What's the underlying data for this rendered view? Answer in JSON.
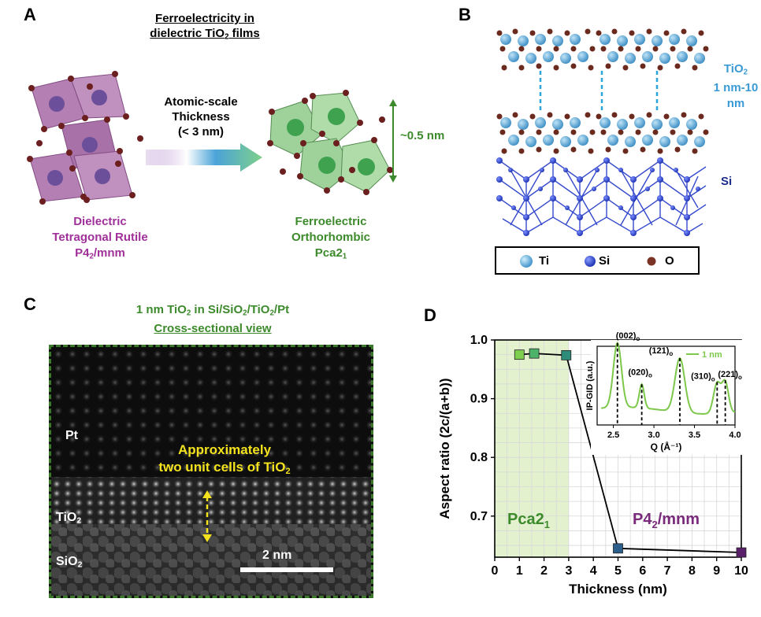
{
  "panels": {
    "a": "A",
    "b": "B",
    "c": "C",
    "d": "D"
  },
  "panel_a": {
    "title_line1": "Ferroelectricity in",
    "title_line2_pre": "dielectric TiO",
    "title_line2_sub": "2",
    "title_line2_post": " films",
    "arrow_line1": "Atomic-scale",
    "arrow_line2": "Thickness",
    "arrow_line3": "(< 3 nm)",
    "height_label": "~0.5 nm",
    "left_line1": "Dielectric",
    "left_line2": "Tetragonal Rutile",
    "left_line3_pre": "P4",
    "left_line3_sub": "2",
    "left_line3_post": "/mnm",
    "right_line1": "Ferroelectric",
    "right_line2": "Orthorhombic",
    "right_line3_pre": "Pca2",
    "right_line3_sub": "1"
  },
  "panel_b": {
    "tio2_pre": "TiO",
    "tio2_sub": "2",
    "thickness_line1": "1 nm-10",
    "thickness_line2": "nm",
    "si_label": "Si",
    "legend": [
      {
        "label": "Ti",
        "color": "#4aa3d8"
      },
      {
        "label": "Si",
        "color": "#1f3fbf"
      },
      {
        "label": "O",
        "color": "#7a3325"
      }
    ]
  },
  "panel_c": {
    "title_pre": "1 nm TiO",
    "title_sub1": "2",
    "title_mid": " in Si/SiO",
    "title_sub2": "2",
    "title_mid2": "/TiO",
    "title_sub3": "2",
    "title_post": "/Pt",
    "subtitle": "Cross-sectional view",
    "pt_label": "Pt",
    "tio2_pre": "TiO",
    "tio2_sub": "2",
    "sio2_pre": "SiO",
    "sio2_sub": "2",
    "annotation_line1": "Approximately",
    "annotation_line2_pre": "two unit cells of TiO",
    "annotation_line2_sub": "2",
    "scalebar": "2 nm"
  },
  "chart_data": [
    {
      "type": "line",
      "title": "",
      "xlabel": "Thickness (nm)",
      "ylabel": "Aspect ratio (2c/(a+b))",
      "xlim": [
        0,
        10
      ],
      "ylim": [
        0.63,
        1.0
      ],
      "xticks": [
        "0",
        "1",
        "2",
        "3",
        "4",
        "5",
        "6",
        "7",
        "8",
        "9",
        "10"
      ],
      "yticks": [
        "0.7",
        "0.8",
        "0.9",
        "1.0"
      ],
      "grid": true,
      "region_left_pre": "Pca2",
      "region_left_sub": "1",
      "region_right_pre": "P4",
      "region_right_sub": "2",
      "region_right_post": "/mnm",
      "region_left_range": [
        0,
        3
      ],
      "points": [
        {
          "x": 1.0,
          "y": 0.975,
          "color": "#7fcf4f"
        },
        {
          "x": 1.6,
          "y": 0.977,
          "color": "#4eb36a"
        },
        {
          "x": 2.9,
          "y": 0.974,
          "color": "#2e8c7a"
        },
        {
          "x": 5.0,
          "y": 0.645,
          "color": "#2d5f8c"
        },
        {
          "x": 10.0,
          "y": 0.638,
          "color": "#5a1f6a"
        }
      ],
      "marker_colors_note": "gradient green to purple"
    },
    {
      "type": "line",
      "title": "",
      "xlabel": "Q (Å⁻¹)",
      "ylabel": "IP-GID (a.u.)",
      "xlim": [
        2.3,
        4.0
      ],
      "xticks": [
        "2.5",
        "3.0",
        "3.5",
        "4.0"
      ],
      "legend": "1 nm",
      "series_color": "#7cc84a",
      "peaks": [
        {
          "label": "(002)",
          "sub": "o",
          "x": 2.55
        },
        {
          "label": "(020)",
          "sub": "o",
          "x": 2.85
        },
        {
          "label": "(121)",
          "sub": "o",
          "x": 3.32
        },
        {
          "label": "(310)",
          "sub": "o",
          "x": 3.78
        },
        {
          "label": "(221)",
          "sub": "o",
          "x": 3.88
        }
      ]
    }
  ]
}
